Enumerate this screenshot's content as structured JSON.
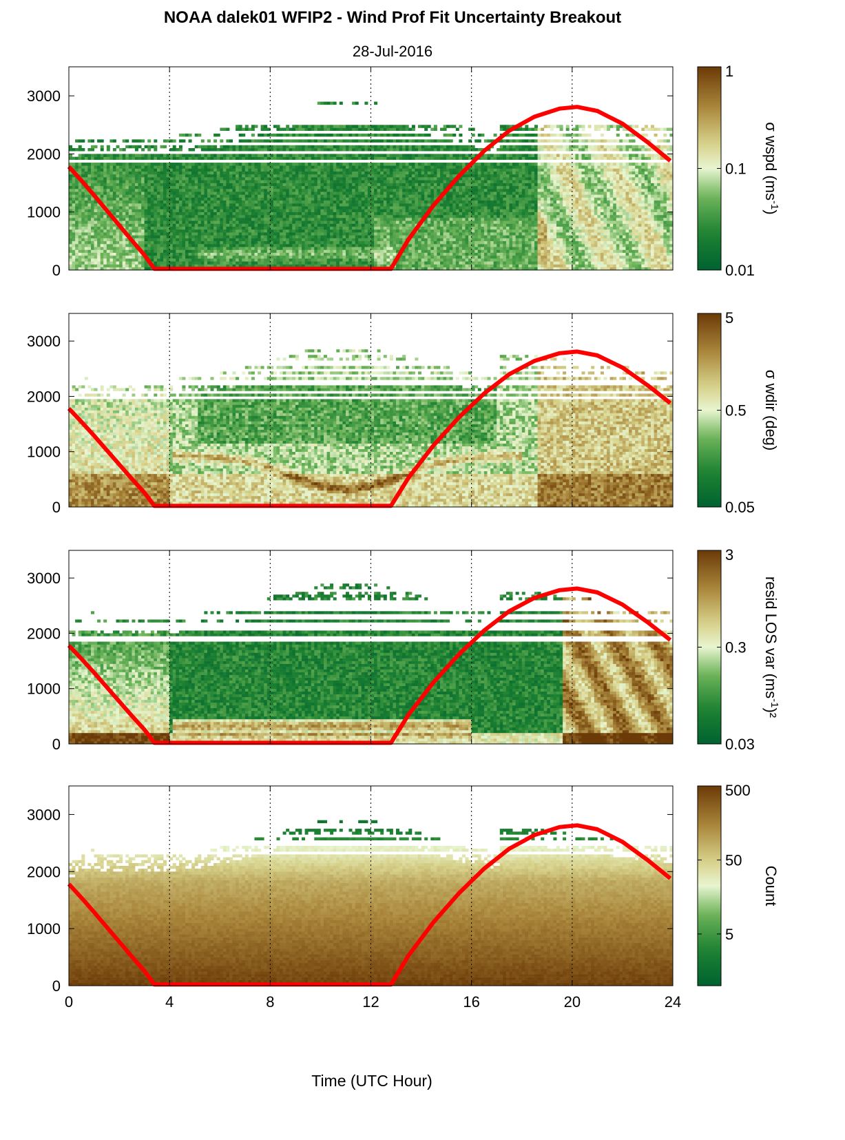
{
  "title": "NOAA dalek01 WFIP2 - Wind Prof Fit Uncertainty Breakout",
  "subtitle": "28-Jul-2016",
  "colors": {
    "low": "#006230",
    "mid": "#e8f5d0",
    "high": "#6b3a07",
    "sun_curve": "#ff0000"
  },
  "chart_data": [
    {
      "type": "heatmap",
      "name": "wspd-uncertainty",
      "xlabel": "",
      "ylabel": "",
      "xlim": [
        0,
        24
      ],
      "ylim": [
        0,
        3500
      ],
      "xticks": [
        "0",
        "4",
        "8",
        "12",
        "16",
        "20",
        "24"
      ],
      "yticks": [
        "0",
        "1000",
        "2000",
        "3000"
      ],
      "colorbar": {
        "label": "σ wspd (ms",
        "label_sup": "-1",
        "label_end": ")",
        "scale": "log",
        "range": [
          0.01,
          1
        ],
        "ticks": [
          "0.01",
          "0.1",
          "1"
        ]
      },
      "grid": "vertical dotted"
    },
    {
      "type": "heatmap",
      "name": "wdir-uncertainty",
      "xlabel": "",
      "ylabel": "",
      "xlim": [
        0,
        24
      ],
      "ylim": [
        0,
        3500
      ],
      "xticks": [
        "0",
        "4",
        "8",
        "12",
        "16",
        "20",
        "24"
      ],
      "yticks": [
        "0",
        "1000",
        "2000",
        "3000"
      ],
      "colorbar": {
        "label": "σ wdir (deg)",
        "label_sup": "",
        "label_end": "",
        "scale": "log",
        "range": [
          0.05,
          5
        ],
        "ticks": [
          "0.05",
          "0.5",
          "5"
        ]
      },
      "grid": "vertical dotted"
    },
    {
      "type": "heatmap",
      "name": "resid-los-var",
      "xlabel": "",
      "ylabel": "",
      "xlim": [
        0,
        24
      ],
      "ylim": [
        0,
        3500
      ],
      "xticks": [
        "0",
        "4",
        "8",
        "12",
        "16",
        "20",
        "24"
      ],
      "yticks": [
        "0",
        "1000",
        "2000",
        "3000"
      ],
      "colorbar": {
        "label": "resid LOS var (ms",
        "label_sup": "-1",
        "label_end": ")²",
        "scale": "log",
        "range": [
          0.03,
          3
        ],
        "ticks": [
          "0.03",
          "0.3",
          "3"
        ]
      },
      "grid": "vertical dotted"
    },
    {
      "type": "heatmap",
      "name": "count",
      "xlabel": "Time (UTC Hour)",
      "ylabel": "",
      "xlim": [
        0,
        24
      ],
      "ylim": [
        0,
        3500
      ],
      "xticks": [
        "0",
        "4",
        "8",
        "12",
        "16",
        "20",
        "24"
      ],
      "yticks": [
        "0",
        "1000",
        "2000",
        "3000"
      ],
      "colorbar": {
        "label": "Count",
        "label_sup": "",
        "label_end": "",
        "scale": "log",
        "range": [
          1,
          500
        ],
        "ticks": [
          "5",
          "50",
          "500"
        ]
      },
      "grid": "vertical dotted"
    }
  ],
  "sun_curve": {
    "x": [
      0,
      0.5,
      1,
      1.5,
      2,
      2.5,
      3,
      3.4,
      4,
      6,
      8,
      10,
      12,
      12.8,
      13.5,
      14.5,
      15.5,
      16.5,
      17.5,
      18.5,
      19.5,
      20.2,
      21,
      22,
      23,
      23.9
    ],
    "y": [
      1780,
      1540,
      1290,
      1030,
      770,
      510,
      260,
      20,
      20,
      20,
      20,
      20,
      20,
      20,
      530,
      1120,
      1620,
      2050,
      2400,
      2640,
      2780,
      2810,
      2740,
      2520,
      2200,
      1880
    ]
  }
}
